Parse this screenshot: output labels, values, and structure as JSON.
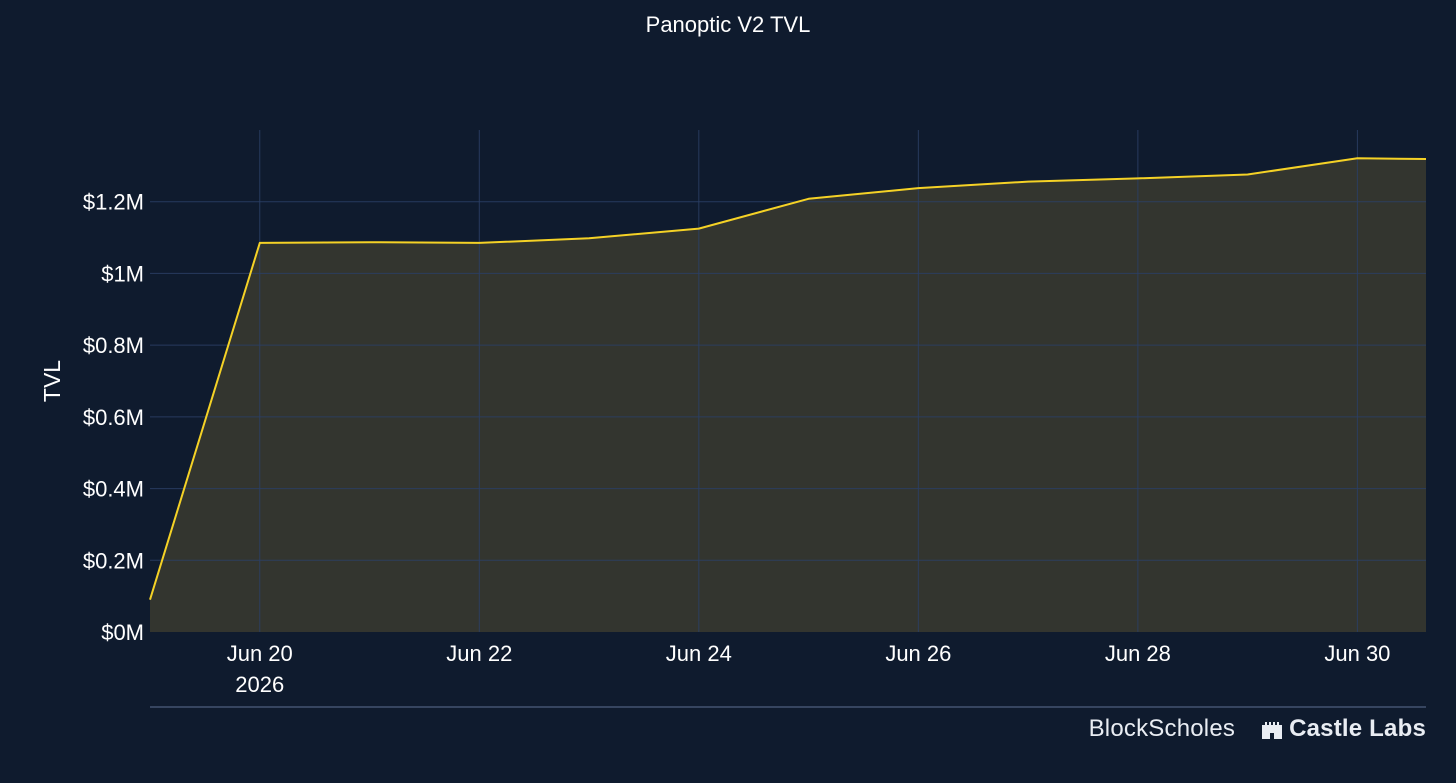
{
  "chart_data": {
    "type": "area",
    "title": "Panoptic V2 TVL",
    "ylabel": "TVL",
    "xlabel": "",
    "x": [
      "2026-06-19",
      "2026-06-20",
      "2026-06-21",
      "2026-06-22",
      "2026-06-23",
      "2026-06-24",
      "2026-06-25",
      "2026-06-26",
      "2026-06-27",
      "2026-06-28",
      "2026-06-29",
      "2026-06-30",
      "2026-06-30T15:00"
    ],
    "series": [
      {
        "name": "",
        "values": [
          90000,
          1085000,
          1087000,
          1085000,
          1098000,
          1125000,
          1208000,
          1238000,
          1256000,
          1265000,
          1276000,
          1321000,
          1319000
        ]
      }
    ],
    "ylim": [
      0,
      1400000
    ],
    "yticks": [
      {
        "value": 0,
        "label": "$0M"
      },
      {
        "value": 200000,
        "label": "$0.2M"
      },
      {
        "value": 400000,
        "label": "$0.4M"
      },
      {
        "value": 600000,
        "label": "$0.6M"
      },
      {
        "value": 800000,
        "label": "$0.8M"
      },
      {
        "value": 1000000,
        "label": "$1M"
      },
      {
        "value": 1200000,
        "label": "$1.2M"
      }
    ],
    "xticks": [
      {
        "date": "2026-06-20",
        "label": "Jun 20",
        "sublabel": "2026"
      },
      {
        "date": "2026-06-22",
        "label": "Jun 22",
        "sublabel": ""
      },
      {
        "date": "2026-06-24",
        "label": "Jun 24",
        "sublabel": ""
      },
      {
        "date": "2026-06-26",
        "label": "Jun 26",
        "sublabel": ""
      },
      {
        "date": "2026-06-28",
        "label": "Jun 28",
        "sublabel": ""
      },
      {
        "date": "2026-06-30",
        "label": "Jun 30",
        "sublabel": ""
      }
    ],
    "grid": true,
    "legend": "none",
    "colors": {
      "line": "#f5d226",
      "fill": "#33352f",
      "grid": "#2c3f66",
      "background": "#0f1b2e",
      "text": "#ffffff"
    }
  },
  "footer": {
    "brand1": "BlockScholes",
    "brand2": "Castle Labs",
    "brand2_icon": "castle-icon"
  }
}
